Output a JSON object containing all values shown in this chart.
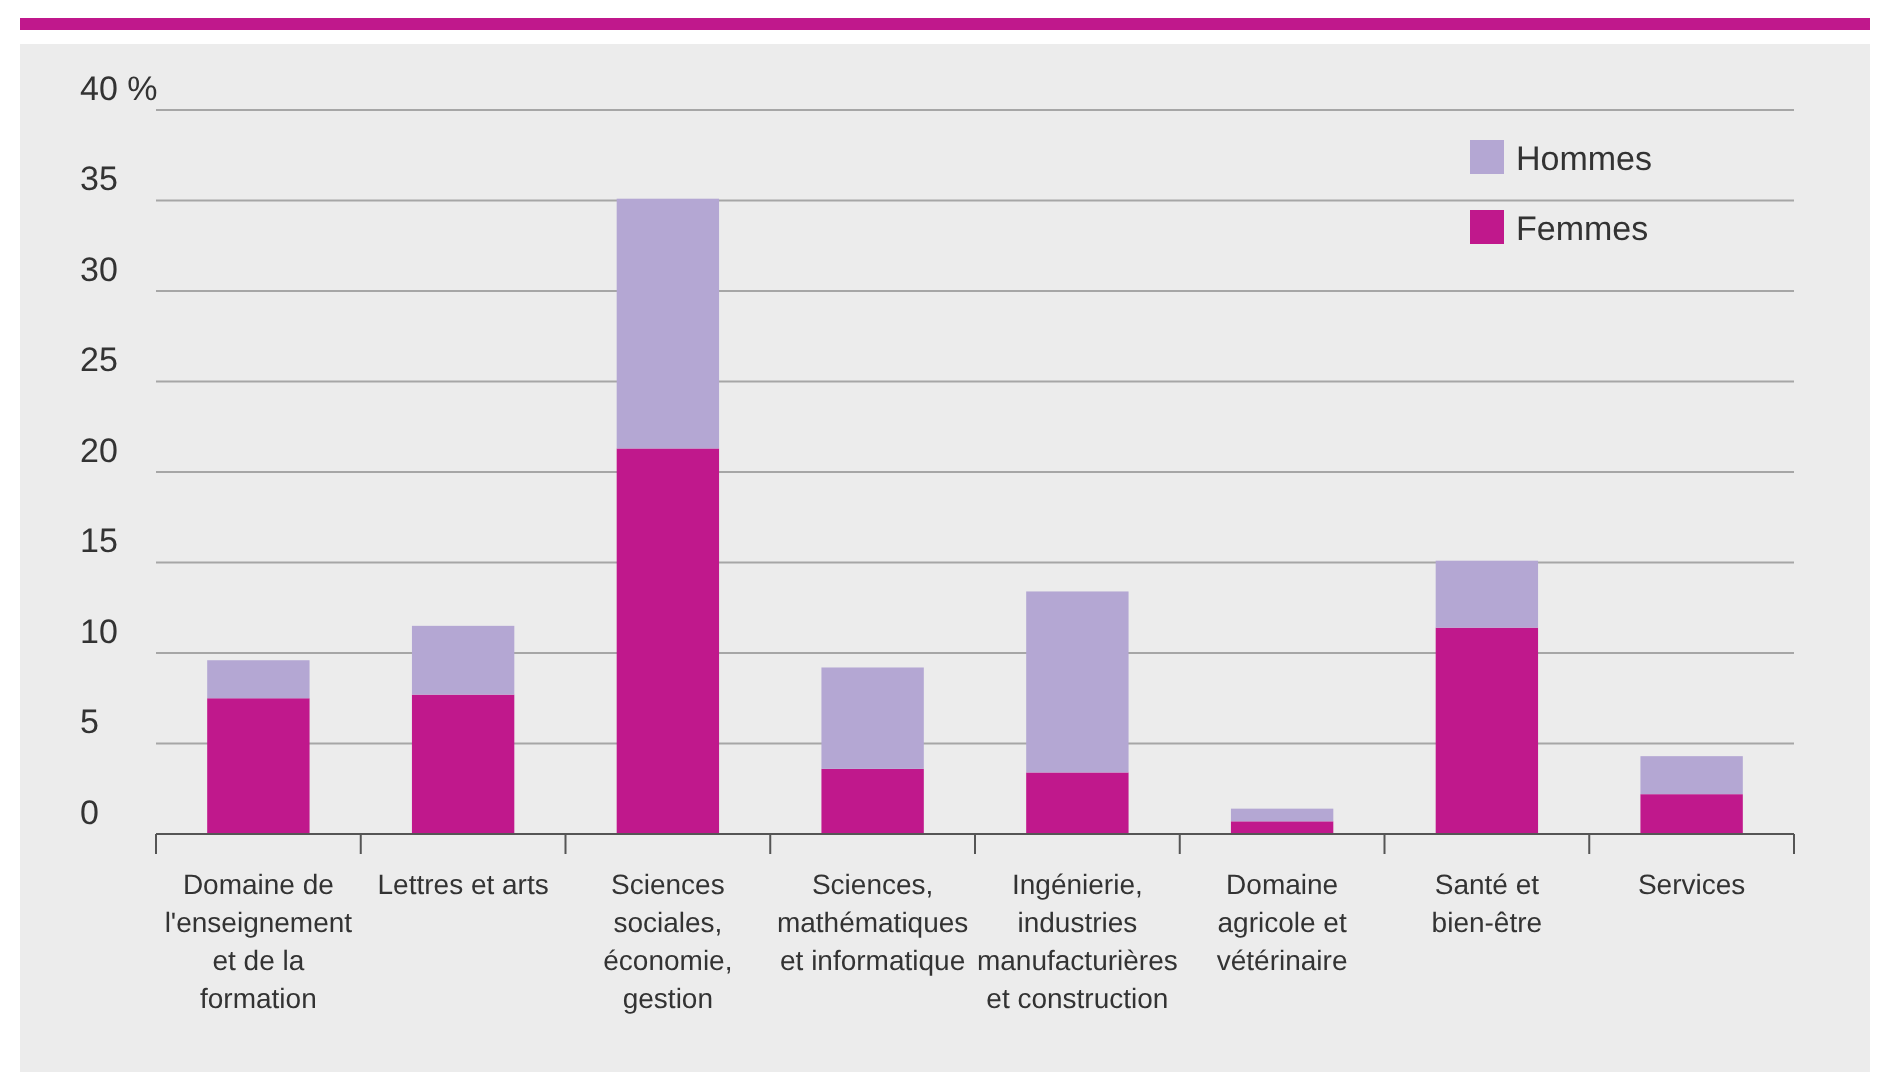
{
  "chart_data": {
    "type": "bar",
    "stacked": true,
    "categories": [
      "Domaine de l'enseignement et de la formation",
      "Lettres et arts",
      "Sciences sociales, économie, gestion",
      "Sciences, mathématiques et informatique",
      "Ingénierie, industries manufacturières et construction",
      "Domaine agricole et vétérinaire",
      "Santé et bien-être",
      "Services"
    ],
    "series": [
      {
        "name": "Femmes",
        "color": "#c0188c",
        "values": [
          7.5,
          7.7,
          21.3,
          3.6,
          3.4,
          0.7,
          11.4,
          2.2
        ]
      },
      {
        "name": "Hommes",
        "color": "#b4a7d3",
        "values": [
          2.1,
          3.8,
          13.8,
          5.6,
          10.0,
          0.7,
          3.7,
          2.1
        ]
      }
    ],
    "ylim": [
      0,
      40
    ],
    "yticks": [
      0,
      5,
      10,
      15,
      20,
      25,
      30,
      35,
      {
        "value": 40,
        "label": "40 %"
      }
    ],
    "grid": "y",
    "legend": "top right"
  }
}
